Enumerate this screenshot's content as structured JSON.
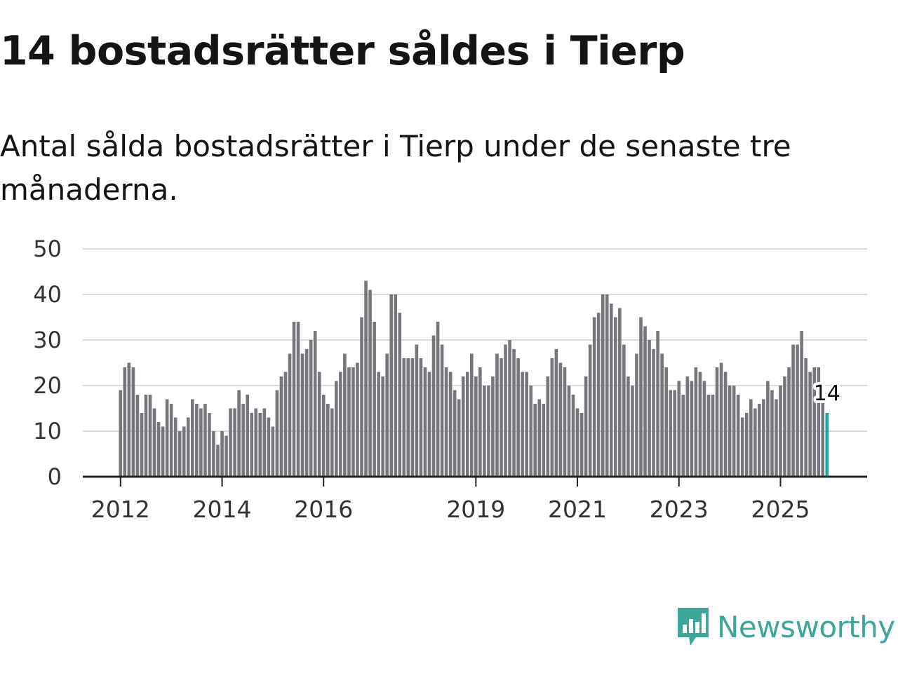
{
  "title": "14 bostadsrätter såldes i Tierp",
  "subtitle": "Antal sålda bostadsrätter i Tierp under de senaste tre månaderna.",
  "brand": {
    "name": "Newsworthy",
    "color": "#3ea59a"
  },
  "colors": {
    "bar": "#76767c",
    "highlight": "#1aa99b",
    "grid": "#dcdcdc",
    "axis": "#222222"
  },
  "chart_data": {
    "type": "bar",
    "title": "Antal sålda bostadsrätter i Tierp",
    "xlabel": "",
    "ylabel": "",
    "ylim": [
      0,
      50
    ],
    "yticks": [
      0,
      10,
      20,
      30,
      40,
      50
    ],
    "xticks": [
      {
        "label": "2012",
        "index": 0
      },
      {
        "label": "2014",
        "index": 24
      },
      {
        "label": "2016",
        "index": 48
      },
      {
        "label": "2019",
        "index": 84
      },
      {
        "label": "2021",
        "index": 108
      },
      {
        "label": "2023",
        "index": 132
      },
      {
        "label": "2025",
        "index": 156
      }
    ],
    "start": "2012-01",
    "frequency": "monthly",
    "values": [
      19,
      24,
      25,
      24,
      18,
      14,
      18,
      18,
      15,
      12,
      11,
      17,
      16,
      13,
      10,
      11,
      13,
      17,
      16,
      15,
      16,
      14,
      10,
      7,
      10,
      9,
      15,
      15,
      19,
      16,
      18,
      14,
      15,
      14,
      15,
      13,
      11,
      19,
      22,
      23,
      27,
      34,
      34,
      27,
      28,
      30,
      32,
      23,
      18,
      16,
      15,
      21,
      23,
      27,
      24,
      24,
      25,
      35,
      43,
      41,
      34,
      23,
      22,
      27,
      40,
      40,
      36,
      26,
      26,
      26,
      29,
      26,
      24,
      23,
      31,
      34,
      29,
      24,
      23,
      19,
      17,
      22,
      23,
      27,
      22,
      24,
      20,
      20,
      22,
      27,
      26,
      29,
      30,
      28,
      26,
      23,
      23,
      20,
      16,
      17,
      16,
      22,
      26,
      28,
      25,
      24,
      20,
      18,
      15,
      14,
      22,
      29,
      35,
      36,
      40,
      40,
      38,
      35,
      37,
      29,
      22,
      20,
      27,
      35,
      33,
      30,
      28,
      32,
      27,
      24,
      19,
      19,
      21,
      18,
      22,
      21,
      24,
      23,
      21,
      18,
      18,
      24,
      25,
      23,
      20,
      20,
      18,
      13,
      14,
      17,
      15,
      16,
      17,
      21,
      19,
      17,
      20,
      22,
      24,
      29,
      29,
      32,
      26,
      23,
      24,
      24,
      17,
      14
    ],
    "highlight_index": 167,
    "annotation": {
      "label": "14",
      "index": 167
    }
  }
}
